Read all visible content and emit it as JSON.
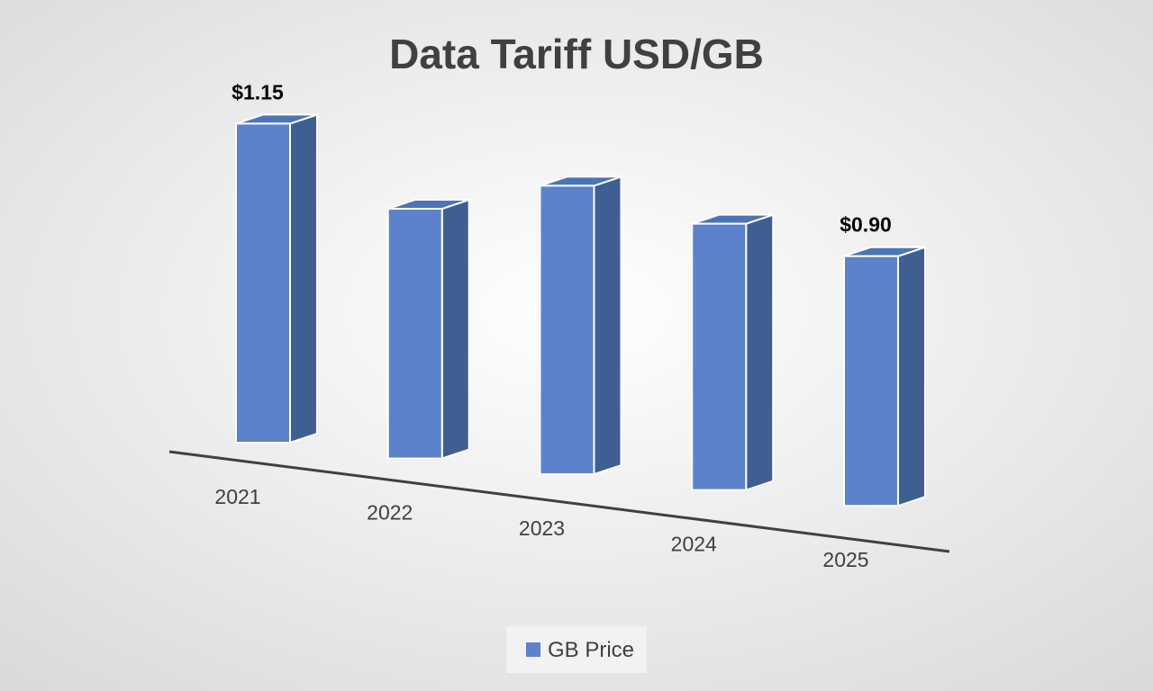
{
  "chart_data": {
    "type": "bar",
    "title": "Data Tariff USD/GB",
    "categories": [
      "2021",
      "2022",
      "2023",
      "2024",
      "2025"
    ],
    "series": [
      {
        "name": "GB Price",
        "values": [
          1.15,
          0.9,
          1.04,
          0.96,
          0.9
        ]
      }
    ],
    "data_labels": [
      "$1.15",
      "",
      "",
      "",
      "$0.90"
    ],
    "xlabel": "",
    "ylabel": "",
    "ylim": [
      0,
      1.2
    ],
    "grid": false,
    "legend_position": "bottom",
    "style": "3d-column"
  },
  "colors": {
    "background_center": "#ffffff",
    "background_edge": "#d9d9d9",
    "bar_front": "#5b82cb",
    "bar_side": "#3f5f93",
    "bar_top": "#4c74b8",
    "bar_outline": "#ffffff",
    "title": "#404040",
    "axis_line": "#404040",
    "tick_text": "#404040",
    "data_label": "#000000",
    "legend_box": "#f2f2f2",
    "legend_text": "#404040"
  }
}
